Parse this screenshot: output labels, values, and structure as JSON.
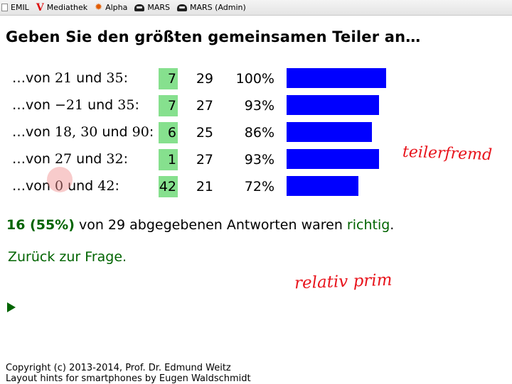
{
  "bookmarks": [
    {
      "label": "EMIL",
      "icon": "page-icon"
    },
    {
      "label": "Mediathek",
      "icon": "v-logo-icon"
    },
    {
      "label": "Alpha",
      "icon": "sun-icon"
    },
    {
      "label": "MARS",
      "icon": "mars-icon"
    },
    {
      "label": "MARS (Admin)",
      "icon": "mars-icon"
    }
  ],
  "title": "Geben Sie den größten gemeinsamen Teiler an…",
  "rows": [
    {
      "pre": "…von ",
      "m1": "21",
      "mid": " und ",
      "m2": "35",
      "post": ":",
      "answer": "7",
      "count": "29",
      "percent": "100%",
      "fraction": 1.0
    },
    {
      "pre": "…von ",
      "m1": "−21",
      "mid": " und ",
      "m2": "35",
      "post": ":",
      "answer": "7",
      "count": "27",
      "percent": "93%",
      "fraction": 0.93
    },
    {
      "pre": "…von ",
      "m1": "18, 30",
      "mid": " und ",
      "m2": "90",
      "post": ":",
      "answer": "6",
      "count": "25",
      "percent": "86%",
      "fraction": 0.86
    },
    {
      "pre": "…von ",
      "m1": "27",
      "mid": " und ",
      "m2": "32",
      "post": ":",
      "answer": "1",
      "count": "27",
      "percent": "93%",
      "fraction": 0.93
    },
    {
      "pre": "…von ",
      "m1": "0",
      "mid": " und ",
      "m2": "42",
      "post": ":",
      "answer": "42",
      "count": "21",
      "percent": "72%",
      "fraction": 0.72
    }
  ],
  "summary": {
    "strong": "16 (55%)",
    "text": " von 29 abgegebenen Antworten waren ",
    "ok": "richtig",
    "end": "."
  },
  "back_link": "Zurück zur Frage.",
  "copyright": [
    "Copyright (c) 2013-2014, Prof. Dr. Edmund Weitz",
    "Layout hints for smartphones by Eugen Waldschmidt"
  ],
  "annotations": {
    "note1": "teilerfremd",
    "note2": "relativ prim"
  },
  "colors": {
    "bar": "#0000ff",
    "answer_bg": "#86e08e",
    "accent": "#006400",
    "ink": "#e8141c"
  }
}
